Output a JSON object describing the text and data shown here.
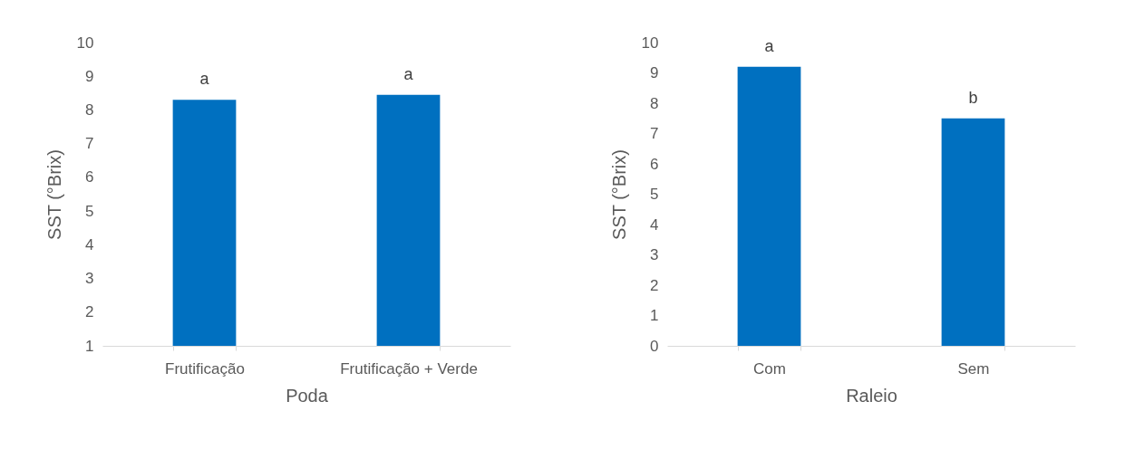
{
  "chart_data": [
    {
      "type": "bar",
      "xlabel": "Poda",
      "ylabel": "SST (°Brix)",
      "categories": [
        "Frutificação",
        "Frutificação + Verde"
      ],
      "values": [
        8.3,
        8.45
      ],
      "color": "#0070c0",
      "ylim": [
        1,
        10
      ],
      "yticks": [
        1,
        2,
        3,
        4,
        5,
        6,
        7,
        8,
        9,
        10
      ],
      "grid": false,
      "annotations": [
        {
          "text": "a",
          "x": "Frutificação",
          "y": 8.3
        },
        {
          "text": "a",
          "x": "Frutificação + Verde",
          "y": 8.45
        }
      ]
    },
    {
      "type": "bar",
      "xlabel": "Raleio",
      "ylabel": "SST (°Brix)",
      "categories": [
        "Com",
        "Sem"
      ],
      "values": [
        9.2,
        7.5
      ],
      "color": "#0070c0",
      "ylim": [
        0,
        10
      ],
      "yticks": [
        0,
        1,
        2,
        3,
        4,
        5,
        6,
        7,
        8,
        9,
        10
      ],
      "grid": false,
      "annotations": [
        {
          "text": "a",
          "x": "Com",
          "y": 9.2
        },
        {
          "text": "b",
          "x": "Sem",
          "y": 7.5
        }
      ]
    }
  ]
}
